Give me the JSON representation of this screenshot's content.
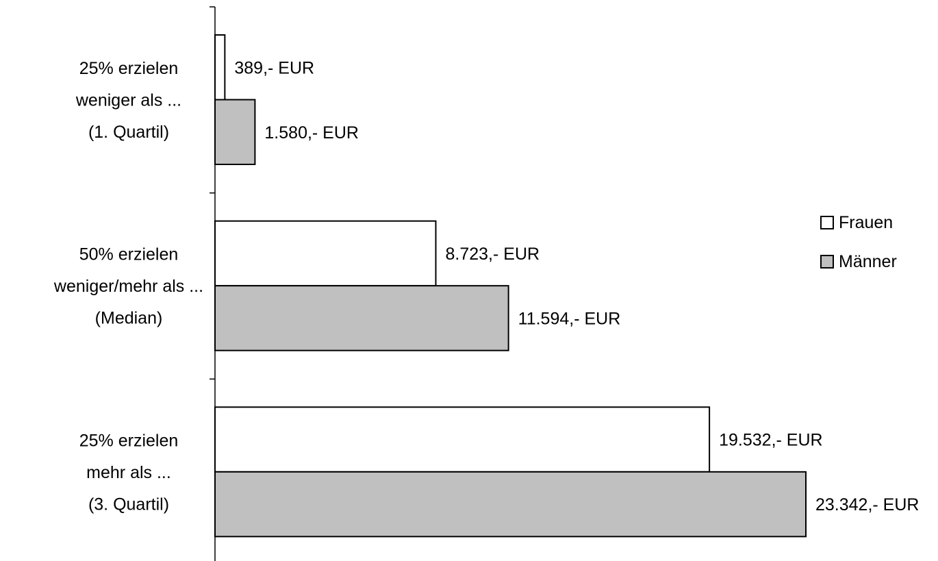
{
  "chart_data": {
    "type": "bar",
    "orientation": "horizontal",
    "categories": [
      [
        "25% erzielen",
        "weniger als ...",
        "(1. Quartil)"
      ],
      [
        "50% erzielen",
        "weniger/mehr als ...",
        "(Median)"
      ],
      [
        "25% erzielen",
        "mehr als ...",
        "(3. Quartil)"
      ]
    ],
    "series": [
      {
        "name": "Frauen",
        "color": "#ffffff",
        "values": [
          389,
          8723,
          19532
        ],
        "labels": [
          "389,- EUR",
          "8.723,- EUR",
          "19.532,- EUR"
        ]
      },
      {
        "name": "Männer",
        "color": "#c0c0c0",
        "values": [
          1580,
          11594,
          23342
        ],
        "labels": [
          "1.580,- EUR",
          "11.594,- EUR",
          "23.342,- EUR"
        ]
      }
    ],
    "xlim": [
      0,
      23342
    ],
    "grid": false,
    "legend_position": "right",
    "title": "",
    "xlabel": "",
    "ylabel": ""
  }
}
